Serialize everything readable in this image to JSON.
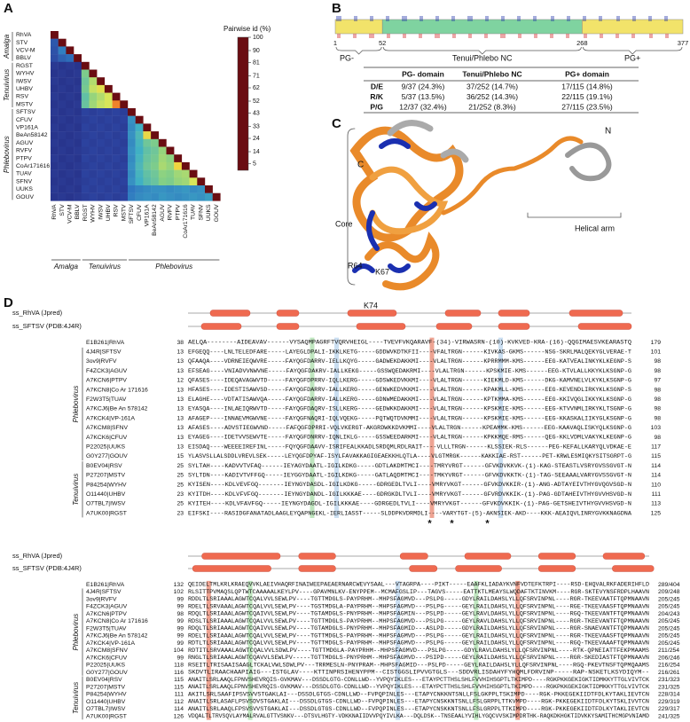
{
  "panel_labels": [
    "A",
    "B",
    "C",
    "D"
  ],
  "chart_data": {
    "type": "heatmap",
    "title": "Pairwise id (%)",
    "labels": [
      "RhVA",
      "STV",
      "VCV-M",
      "BBLV",
      "RGST",
      "WYHV",
      "IWSV",
      "UHBV",
      "RSV",
      "MSTV",
      "SFTSV",
      "CFUV",
      "VP161A",
      "BeAn58142",
      "AGUV",
      "RVFV",
      "PTPV",
      "CoAr171616",
      "TUAV",
      "SFNV",
      "UUKS",
      "GOUV"
    ],
    "groups": [
      "Amalga",
      "Tenuivirus",
      "Phlebovirus"
    ],
    "values": [
      [
        100
      ],
      [
        18,
        100
      ],
      [
        17,
        25,
        100
      ],
      [
        16,
        20,
        22,
        100
      ],
      [
        12,
        11,
        12,
        11,
        100
      ],
      [
        11,
        12,
        11,
        12,
        42,
        100
      ],
      [
        12,
        11,
        12,
        11,
        40,
        48,
        100
      ],
      [
        11,
        12,
        11,
        12,
        41,
        50,
        55,
        100
      ],
      [
        12,
        11,
        12,
        11,
        38,
        45,
        48,
        52,
        100
      ],
      [
        11,
        12,
        11,
        12,
        39,
        46,
        50,
        52,
        72,
        100
      ],
      [
        12,
        11,
        12,
        11,
        14,
        13,
        14,
        13,
        14,
        13,
        100
      ],
      [
        11,
        12,
        11,
        12,
        13,
        14,
        13,
        14,
        13,
        14,
        28,
        100
      ],
      [
        12,
        11,
        12,
        11,
        14,
        13,
        14,
        13,
        14,
        13,
        27,
        33,
        100
      ],
      [
        11,
        12,
        11,
        12,
        13,
        14,
        13,
        14,
        13,
        14,
        28,
        35,
        58,
        100
      ],
      [
        12,
        11,
        12,
        11,
        14,
        13,
        14,
        13,
        14,
        13,
        27,
        34,
        40,
        42,
        100
      ],
      [
        11,
        12,
        11,
        12,
        13,
        14,
        13,
        14,
        13,
        14,
        28,
        33,
        38,
        40,
        45,
        100
      ],
      [
        12,
        11,
        12,
        11,
        14,
        13,
        14,
        13,
        14,
        13,
        27,
        34,
        39,
        41,
        46,
        44,
        100
      ],
      [
        11,
        12,
        11,
        12,
        13,
        14,
        13,
        14,
        13,
        14,
        28,
        35,
        40,
        42,
        47,
        45,
        60,
        100
      ],
      [
        12,
        11,
        12,
        11,
        14,
        13,
        14,
        13,
        14,
        13,
        27,
        34,
        38,
        40,
        44,
        43,
        46,
        47,
        100
      ],
      [
        11,
        12,
        11,
        12,
        13,
        14,
        13,
        14,
        13,
        14,
        28,
        33,
        37,
        39,
        43,
        42,
        45,
        46,
        52,
        100
      ],
      [
        12,
        11,
        12,
        11,
        14,
        13,
        14,
        13,
        14,
        13,
        24,
        26,
        27,
        28,
        28,
        27,
        28,
        29,
        27,
        28,
        100
      ],
      [
        11,
        12,
        11,
        12,
        13,
        14,
        13,
        14,
        13,
        14,
        25,
        27,
        28,
        27,
        29,
        28,
        27,
        28,
        29,
        28,
        30,
        100
      ]
    ],
    "zlim": [
      0,
      100
    ],
    "cticks": [
      100,
      90,
      81,
      71,
      62,
      52,
      43,
      33,
      24,
      14,
      5
    ],
    "colors": [
      "#6a0d12",
      "#a81d22",
      "#d9471f",
      "#f08a2c",
      "#f6cf3a",
      "#d7e65a",
      "#84cf86",
      "#40b0c4",
      "#2f78c0",
      "#2c429e",
      "#211b6a"
    ]
  },
  "panel_b": {
    "positions": [
      1,
      52,
      268,
      377
    ],
    "domains": [
      "PG-",
      "Tenui/Phlebo NC",
      "PG+"
    ],
    "table": {
      "header": [
        "PG- domain",
        "Tenui/Phlebo NC",
        "PG+ domain"
      ],
      "rows": [
        [
          "D/E",
          "9/37 (24.3%)",
          "37/252 (14.7%)",
          "17/115 (14.8%)"
        ],
        [
          "R/K",
          "5/37 (13.5%)",
          "36/252 (14.3%)",
          "22/115 (19.1%)"
        ],
        [
          "P/G",
          "12/37 (32.4%)",
          "21/252 (8.3%)",
          "27/115 (23.5%)"
        ]
      ]
    }
  },
  "panel_c": {
    "c_term": "C",
    "n_term": "N",
    "core": "Core",
    "helical_arm": "Helical arm",
    "residues": [
      "R64",
      "K67",
      "K74"
    ]
  },
  "panel_d": {
    "ss_labels": [
      "ss_RhVA (Jpred)",
      "ss_SFTSV (PDB:4J4R)"
    ],
    "groups": [
      "Phlebovirus",
      "Tenuivirus"
    ],
    "stars": [
      "*",
      "*",
      "*"
    ],
    "blocks": [
      {
        "rows": [
          {
            "name": "E1B261|RhVA",
            "start": 38,
            "seq": "AELQA--------AIDEAVAV------VYSAQMPAGRFTVQRVHEIGL----TVEVFVKQARAVF-(34)-VIRWASRN-(10)-KVKVED-KRA-(16)-QQGIMAESVKEARASTQ",
            "end": 179
          },
          {
            "name": "4J4R|SFTSV",
            "start": 13,
            "seq": "EFGEQQ----LNLTELEDFARE-----LAYEGLDPALI-IKKLKETG-----GDDWVKDTKFII----VFALTRGN------KIVKAS-GKMS------NSG-SKRLMALQEKYGLVERAE-T",
            "end": 101
          },
          {
            "name": "3ov9|RVFV",
            "start": 13,
            "seq": "QFAAQA----VDRNEIEQWVRE-----FAYQGFDARRV-IELLKQYG-----GADWEKDAKKMI----VLALTRGN------KPRRMMM-KMS------EEG-KATVEALINKYKLKEGNP-S",
            "end": 98
          },
          {
            "name": "F4ZCK3|AGUV",
            "start": 13,
            "seq": "EFSEAG----VNIADVVNWVNE-----FAYQGFDAKRV-IALLKEKG-----GSSWQEDAKRMI----VLALTRGN------KPSKMIE-KMS------EEG-KTVLALLKKYKLKSGNP-G",
            "end": 98
          },
          {
            "name": "A7KCN6|PTPV",
            "start": 12,
            "seq": "QFASES----IDEQAVAGWVTD-----FAYQGFDPRRV-IQLLKERG-----GDSWKEDVKKMI----VLALTRGN------KIEKMLD-KMS------DKG-KAMVNELVLKYKLKSGNP-G",
            "end": 97
          },
          {
            "name": "A7KCN8|Co Ar 171616",
            "start": 13,
            "seq": "HFASES----IDESTISAWVSD-----FAYQGFDARRV-IALLKERG-----GENWKEDVKKMI----VLALTRGN------KPAKMLL-KMS------EEG-KEVENDLIRKYKLKSGNP-S",
            "end": 98
          },
          {
            "name": "F2W3T5|TUAV",
            "start": 13,
            "seq": "ELAGHE----VDTATISAWVQA-----FAYQGFDARRV-IALLKERG-----GDNWMEDAKKMI----VLALTRGN------KPTKMMA-KMS------EEG-KKIVQGLIKKYKLKSGNP-G",
            "end": 98
          },
          {
            "name": "A7KCJ6|Be An 578142",
            "start": 13,
            "seq": "EYASQA----INLAEIQRWVTD-----FAYQGFDAQRV-ISLLKERG-----GEDWKKDAKKMI----VLALTRGN------KPSKMIE-KMS------EEG-KTVVNMLIRKYKLTSGNP-G",
            "end": 98
          },
          {
            "name": "A7KCK4|VP-161A",
            "start": 13,
            "seq": "AFAGEP----INNAEVMGWVNE-----FAYQGFNAQRI-IQLVQEKG-----PQTWQTDVKMMI----VLALTRGN------KPSKMIE-KMS------EEG-KKASKALIIKYGLKSGNP-G",
            "end": 98
          },
          {
            "name": "A7KCM8|SFNV",
            "start": 13,
            "seq": "AFASES----ADVSTIEGWVND-----FAFQGFDPRRI-VQLVKERGT-AKGRDWKKDVKMMI----VLALTRGN------KPEAMMK-KMS------EEG-KAAVAQLISKYQLKSGNP-G",
            "end": 103
          },
          {
            "name": "A7KCK6|CFUV",
            "start": 13,
            "seq": "EYAGEG----IDETVVSEWVTE-----FAYQGFDNRRV-IQNLIKLG-----GSSWEEDARKMI----VLALTRGN------KPKKMQE-RMS------QEG-KKLVDMLVAKYKLKEGNP-G",
            "end": 98
          },
          {
            "name": "P22025|UUKS",
            "start": 13,
            "seq": "EISDAQ----WEEEEIREFINL-----FQYQGFDAAVV-ISRIFEALKKADLSRDQMLRDLRAIT----VLLLTRGN------KLSSIEK-RLS------PEG-KEFALLKARYQLVDKAE-E",
            "end": 117
          },
          {
            "name": "G0Y277|GOUV",
            "start": 15,
            "seq": "YLASVSLLALSDDLVREVLSEK-----LEYQGFDPYAF-ISYLFAVAKKAGIGEAEKKHLQTLA----VLGTMRGK------KAKKIAE-RST------PET-KRWLESMIQKYSITSGRPT-G",
            "end": 115
          },
          {
            "name": "B0EV04|RSV",
            "start": 25,
            "seq": "SYLTAH----KADVVTVFAQ------IEYAGYDAATL-IGILKDKG-----GDTLAKDMTMCI----TMRYVRGT------GFVKDVKKVK-(1)-KAG-STEASTLVSRYGVSSGVGT-N",
            "end": 114
          },
          {
            "name": "P27207|MSTV",
            "start": 25,
            "seq": "SYLTDN----KADIVTVFFGQ-----IEYGGYDAATL-IGILKDKG-----GATLAQDMTMCI----TMKYVRGT------GFVKDVKKTK-(1)-TAG-SEEAAALVARYGVSSGVGT-N",
            "end": 114
          },
          {
            "name": "P84254|WYHV",
            "start": 25,
            "seq": "KYISEN----KDLVEVFGQ-------IEYNGYDASDL-IGILKDKG-----GDRGEDLTVLI----VMRYVKGT------GFVKDVKKIR-(1)-ANG-ADTAYEIVTHYGVQGVSGD-N",
            "end": 110
          },
          {
            "name": "O11440|UHBV",
            "start": 23,
            "seq": "KYITDH----KDLVFVFGQ-------IEYNGYDANDL-IGILKKKAE----GDRGKDLTVLI----VMRYVKGT------GFVRDVKKIK-(1)-PAG-GDTAHEIVTHYGVVHSVGD-N",
            "end": 111
          },
          {
            "name": "O7TBL7|IWSV",
            "start": 25,
            "seq": "KYITEH----KDLVFAVFGQ-----IEYNGYDAGDL-IGILKKKAE----GDRGEDLTVLI----VMRYVKGT------GFVKDVKKIK-(1)-PAG-GETSHEIVTHYGVVHSVGD-N",
            "end": 113
          },
          {
            "name": "A7UK00|RGST",
            "start": 23,
            "seq": "EIFSKI----RASIDGFANATADLAAGLEYQAPNGEKL-IERLIASST-----SLDDPKVDRMDLI----VARYTGT-(5)-AKNSIEK-AKD----KKK-AEAIQVLINRYGVKKNAGDNA",
            "end": 125
          }
        ]
      },
      {
        "rows": [
          {
            "name": "E1B261|RhVA",
            "start": 132,
            "seq": "QEIDELTMLKRLKRAEQVVKLAEIVHAQRFINAIWEEPAEAERNARCWEVYSAAL---VTAGRPA----PIKT-----EAAFKLIADAYKVNFVDTEFKTRPI----RSD-EHQVALRKFADERIHFLD",
            "end": "289/404"
          },
          {
            "name": "4J4R|SFTSV",
            "start": 102,
            "seq": "RLSITTPVMAQSLQPTWTCAAAAALKEYLPV----GPAVMNLKV-ENYPPEM--MCMAFGSLIP---TAGVS-----EATTKTLMEAYSLWQDAFTKTINVKM----RGR-SKTEVYNSFRDPLHAAVN",
            "end": "209/248"
          },
          {
            "name": "3ov9|RVFV",
            "start": 99,
            "seq": "RDDLTLSRIAAALAGWTCQALVVLSEWLPV----TGTTMDGLS-PAYPRHM--MHPSFAGMVD---PSLPG-----GDYLRAILDAHSLYLLQFSRVINPNL----RGR-TKEEVAATFTQPMNAAVN",
            "end": "205/245"
          },
          {
            "name": "F4ZCK3|AGUV",
            "start": 99,
            "seq": "RDELTLSRVAAALAGWTCQALVVLSEWLPV----TGSTMDGLA-PAYPRHM--MHPSFAGMVD---PSLPG-----GEYLRAILDAHSLYLLQFSRVINPNL----RGE-TKEEVAASFTQPMNAAVN",
            "end": "205/245"
          },
          {
            "name": "A7KCN6|PTPV",
            "start": 98,
            "seq": "RDQLTLSRIAAALAGWTCQAIVVLSEWLPV----TGTAMDGLS-PNYPRHM--MHPSFAGMIN---PSLPD-----GEYLRAVLDAHSLYLLQFSRVINPNL----RGQ-TKEEVANTFTQPMNAAVN",
            "end": "204/243"
          },
          {
            "name": "A7KCN8|Co Ar 171616",
            "start": 99,
            "seq": "RDSLTLSRIAAALAGWTCQALVVLSEWLPV----TGTTMDGLS-PAYPRHM--MHPSFAGMVD---PSLPG-----GEYLRAVLDAHSLYLLQFSRVINPNL----RGR-TKEEVANTFTQPMNAAVN",
            "end": "205/245"
          },
          {
            "name": "F2W3T5|TUAV",
            "start": 99,
            "seq": "RDQLTLSRIAAALAGWTCQAIVVLSEWLPV----TGTAMDGLS-PNYPRHM--MHPSFAGMID---ASLPD-----GDYLRAILDAHSLYLLQFSRVINPNL----RGR-SNAEVANTFTQPMNAAVN",
            "end": "205/245"
          },
          {
            "name": "A7KCJ6|Be An 578142",
            "start": 99,
            "seq": "RDELTLSRIAAALAGWTCQALVVLSEWLPV----TGTTMDGLS-PAYPRHM--MHPSFAGMVD---PSLPG-----GEYLRAILDAHSLYLLQFSRVINPNL----RGR-TKEEVAASFTQPMNAAVN",
            "end": "205/245"
          },
          {
            "name": "A7KCK4|VP-161A",
            "start": 99,
            "seq": "RDTLTLSRIAAALAGWTCQALVVLSEWLPV----TGTTMDGLS-PAYPRHM--MHPSFAGMVD---PSLPG-----GEYLRAILDAHSLYLLQFSRVINPNL----RGQ-TKEEVAAAFTQPMNAAVN",
            "end": "205/245"
          },
          {
            "name": "A7KCM8|SFNV",
            "start": 104,
            "seq": "RDTITLSRVAAALAGWTCQALVVLSDWLPV----TGTTMDGLA-PAYPRHM--MHPSFAGMVD---PSLPG-----GDYLRAVLDAHSLYLLQFSRVINPNL----RTK-QPNEIATTFEKPMAAMS",
            "end": "211/254"
          },
          {
            "name": "A7KCK6|CFUV",
            "start": 99,
            "seq": "RNGLTLSRIAAALAGWTCQAVVLSEWLPV-----TGTTMDGLS-PNYPRHM--MHPSFAGMVD---PSIPD-----GEYLRAILDAHSLYLLQFSRVINPNL----RGR-SKEDIASTFTQPMNAAVN",
            "end": "206/246"
          },
          {
            "name": "P22025|UUKS",
            "start": 118,
            "seq": "RSEITLTRISAAISAAGLTCKALVWLSDWLPV---TRRMESLN-PNYPRAM--MHPSFAGMID---PSLPD-----GEYLRAILDAHSLYLLQFSRVINPNL----RGQ-PKEVTNSFTQPMQAAMS",
            "end": "216/254"
          },
          {
            "name": "G0Y277|GOUV",
            "start": 116,
            "seq": "SKDVTLIRAACHAAPIAIG---ISTGLAV----KTTINPRSIHENYPPM--CISTGGSLIPVVGTGLS---SDDVRLISDAHYFYHQMLFDRVINP-----RAP-NSKETLKSYDIQYM--",
            "end": "216/261"
          },
          {
            "name": "B0EV04|RSV",
            "start": 115,
            "seq": "ANAITLSRLAAQLFPNVSHEVRQIS-GVKMAV---DSSDLGTG-CDNLLWD--YVPQYIKLES---ETAYPCTTHSLSHLFVVHIHSGPTLTKIMPD----RGKPKKGEKIGKTIDMKKYTTGLVIVTCK",
            "end": "231/323"
          },
          {
            "name": "P27207|MSTV",
            "start": 115,
            "seq": "ANAITLSRLAAQLFPNVSHEVRQIS-GVKMAV---DSSDLGTG-CDNLLWD--YVPQYIKLES---ETAYPCTTHSLSHLFVVHIHSGPTLTKIMPD----RGKPKKGEKIGKTIDMKKYTTGLVIVTCK",
            "end": "231/325"
          },
          {
            "name": "P84254|WYHV",
            "start": 111,
            "seq": "AKITLSRLSAAFIPSVSVVSTGAKLAI---DSSDLGTGS-CDNLLWD--FVPQPINLES---ETAPYCNKKNTSNLLFSLGKPPLTSKIMPD----RGK-PKKEGEKIIDTFDLKYTAKLIEVTCN",
            "end": "228/314"
          },
          {
            "name": "O11440|UHBV",
            "start": 112,
            "seq": "ANAITLSRLASAFLPSVSDVSTGAKLAI---DSSDLGTGS-CDNLLWD--FVPQPINLES---ETAPYCNSKKNTSNLLFSLGRPPLTTKVMPD----RGK-PKKEGEKIIDTFDLKYTSKLIVVTCN",
            "end": "229/319"
          },
          {
            "name": "O7TBL7|IWSV",
            "start": 114,
            "seq": "ANAITLSRLAAQLFPSVSVVSTGAKLAI---DSSDLGTGS-CDNLLWD--FVPQPINLES---ETAPYCNSKKNTSNLLFSLGRPPLTTKIMPD----RGK-PKKEGEKIIDTFDLKYTAKLIEVTCN",
            "end": "229/317"
          },
          {
            "name": "A7UK00|RGST",
            "start": 126,
            "seq": "VDQALTLTRVSQVLAYMALRVALGTTVSNKV---DTSVLHGTY-VDKKNAIIDVVPQYIVLKA---DQLDSK--TNSEAALYVIHLYGQCVVSKIMPDRTHK-RAQKDKHGKTIDVKKYSAMITHCMGPVNIAMD",
            "end": "241/325"
          }
        ]
      }
    ]
  }
}
